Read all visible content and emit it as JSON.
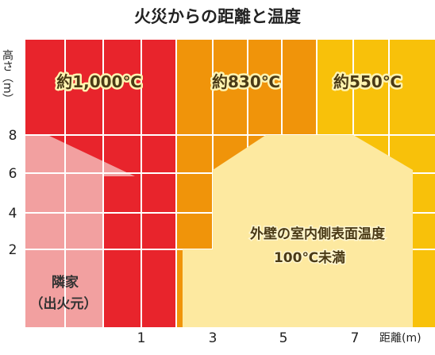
{
  "chart_data": {
    "type": "heatmap",
    "title": "火災からの距離と温度",
    "ylabel": "高さ（m）",
    "xlabel": "距離(m)",
    "y_ticks": [
      "8",
      "6",
      "4",
      "2"
    ],
    "x_ticks": [
      "1",
      "3",
      "5",
      "7"
    ],
    "zones": [
      {
        "label": "約1,000℃",
        "color": "#e8242c"
      },
      {
        "label": "約830℃",
        "color": "#f0940a"
      },
      {
        "label": "約550℃",
        "color": "#f8c10a"
      }
    ],
    "annotations": {
      "house_line1": "外壁の室内側表面温度",
      "house_line2": "100℃未満",
      "neighbor_line1": "隣家",
      "neighbor_line2": "（出火元）"
    },
    "colors": {
      "neighbor_fill": "#f2a0a0",
      "house_fill": "#fde9a0",
      "grid": "#ffffff"
    }
  }
}
